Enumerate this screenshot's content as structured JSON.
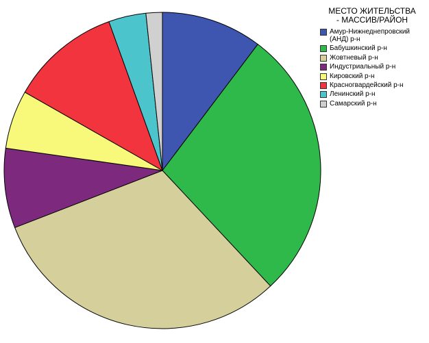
{
  "chart_data": {
    "type": "pie",
    "legend_title_lines": [
      "МЕСТО ЖИТЕЛЬСТВА",
      "- МАССИВ/РАЙОН"
    ],
    "legend_position": "top-right",
    "series": [
      {
        "name": "Амур-Нижнеднепровский (АНД) р-н",
        "value": 10.5,
        "color": "#3e56b0"
      },
      {
        "name": "Бабушкинский р-н",
        "value": 28.3,
        "color": "#2fb94a"
      },
      {
        "name": "Жовтневый р-н",
        "value": 31.7,
        "color": "#d4cf9b"
      },
      {
        "name": "Индустриальный р-н",
        "value": 8.3,
        "color": "#7d2a7e"
      },
      {
        "name": "Кировский р-н",
        "value": 6.1,
        "color": "#f8f87a"
      },
      {
        "name": "Красногвардейский р-н",
        "value": 11.5,
        "color": "#f1343e"
      },
      {
        "name": "Ленинский р-н",
        "value": 3.9,
        "color": "#4cc4cc"
      },
      {
        "name": "Самарский р-н",
        "value": 1.7,
        "color": "#d0d0d0"
      }
    ]
  }
}
